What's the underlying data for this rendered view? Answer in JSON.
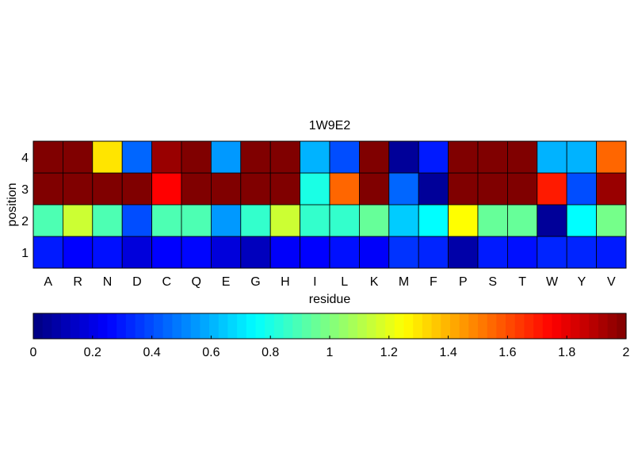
{
  "chart_data": {
    "type": "heatmap",
    "title": "1W9E2",
    "xlabel": "residue",
    "ylabel": "position",
    "x_categories": [
      "A",
      "R",
      "N",
      "D",
      "C",
      "Q",
      "E",
      "G",
      "H",
      "I",
      "L",
      "K",
      "M",
      "F",
      "P",
      "S",
      "T",
      "W",
      "Y",
      "V"
    ],
    "y_categories": [
      "1",
      "2",
      "3",
      "4"
    ],
    "values": {
      "1": [
        0.3,
        0.25,
        0.28,
        0.18,
        0.25,
        0.26,
        0.18,
        0.12,
        0.24,
        0.25,
        0.28,
        0.24,
        0.35,
        0.32,
        0.08,
        0.3,
        0.28,
        0.32,
        0.32,
        0.3
      ],
      "2": [
        0.9,
        1.15,
        0.9,
        0.4,
        0.9,
        0.9,
        0.55,
        0.85,
        1.15,
        0.85,
        0.85,
        0.95,
        0.65,
        0.75,
        1.25,
        0.95,
        0.95,
        0.05,
        0.75,
        0.98
      ],
      "3": [
        2.0,
        2.0,
        2.0,
        2.0,
        1.75,
        2.0,
        2.0,
        2.0,
        2.0,
        0.8,
        1.55,
        2.0,
        0.45,
        0.05,
        2.0,
        2.0,
        2.0,
        1.7,
        0.4,
        1.95
      ],
      "4": [
        2.0,
        2.0,
        1.3,
        0.45,
        1.95,
        2.0,
        0.55,
        2.0,
        2.0,
        0.6,
        0.4,
        2.0,
        0.05,
        0.3,
        2.0,
        2.0,
        2.0,
        0.6,
        0.6,
        1.55
      ]
    },
    "colorbar": {
      "colormap": "jet",
      "range": [
        0,
        2
      ],
      "ticks": [
        "0",
        "0.2",
        "0.4",
        "0.6",
        "0.8",
        "1",
        "1.2",
        "1.4",
        "1.6",
        "1.8",
        "2"
      ]
    },
    "grid": false,
    "legend": "colorbar-bottom"
  }
}
